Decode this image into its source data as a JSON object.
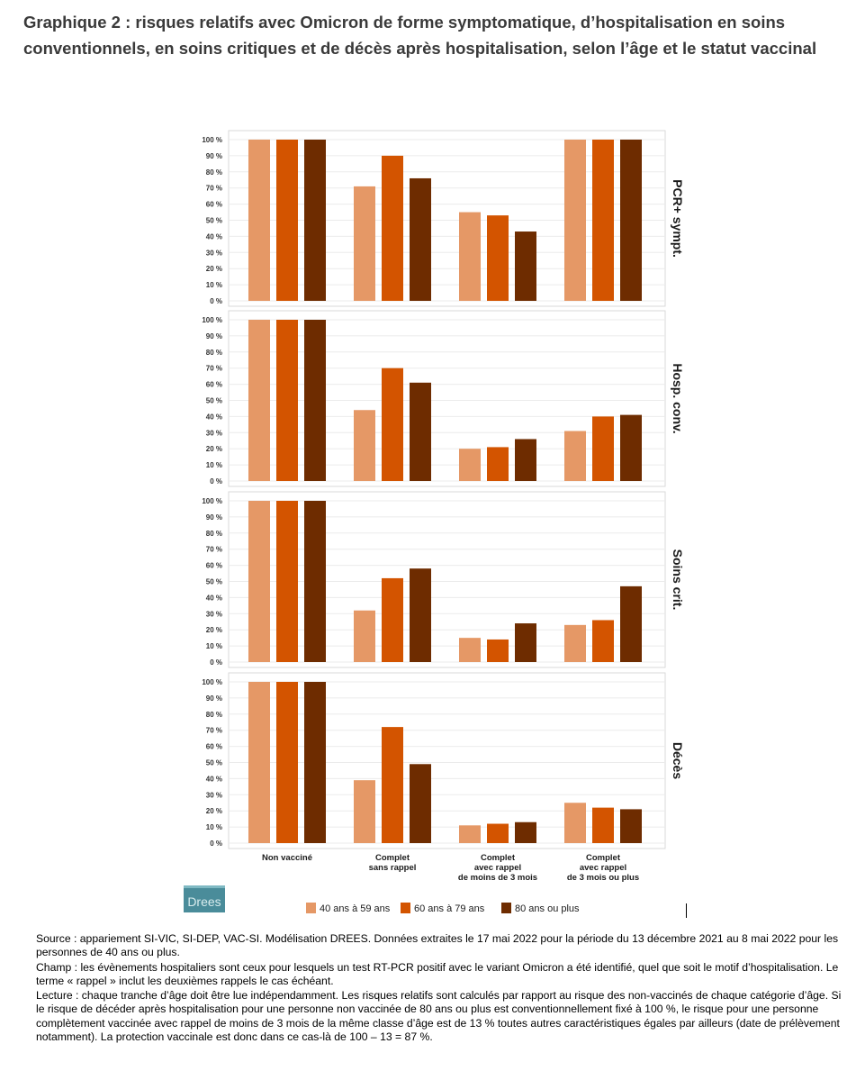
{
  "title": "Graphique 2 : risques relatifs avec Omicron de forme symptomatique, d’hospitalisation en soins conventionnels, en soins critiques et de décès après hospitalisation, selon l’âge et le statut vaccinal",
  "logo_text": "Drees",
  "notes": {
    "source": "Source : appariement SI-VIC, SI-DEP, VAC-SI. Modélisation DREES. Données extraites le 17 mai 2022 pour la période du 13 décembre 2021 au 8 mai 2022 pour les personnes de 40 ans ou plus.",
    "champ": "Champ : les évènements hospitaliers sont ceux pour lesquels un test RT-PCR positif avec le variant Omicron a été identifié, quel que soit le motif d’hospitalisation. Le terme « rappel » inclut les deuxièmes rappels le cas échéant.",
    "lecture": "Lecture : chaque tranche d’âge doit être lue indépendamment. Les risques relatifs sont calculés par rapport au risque des non-vaccinés de chaque catégorie d’âge. Si le risque de décéder après hospitalisation pour une personne non vaccinée de 80 ans ou plus est conventionnellement fixé à 100 %, le risque pour une personne complètement vaccinée avec rappel de moins de 3 mois de la même classe d’âge est de 13 % toutes autres caractéristiques égales par ailleurs (date de prélèvement notamment). La protection vaccinale est donc dans ce cas-là de 100 – 13 = 87 %."
  },
  "chart_data": {
    "type": "bar",
    "ylim": [
      0,
      100
    ],
    "y_ticks": [
      "0 %",
      "10 %",
      "20 %",
      "30 %",
      "40 %",
      "50 %",
      "60 %",
      "70 %",
      "80 %",
      "90 %",
      "100 %"
    ],
    "categories": [
      [
        "Non vacciné"
      ],
      [
        "Complet",
        "sans rappel"
      ],
      [
        "Complet",
        "avec rappel",
        "de moins de 3 mois"
      ],
      [
        "Complet",
        "avec rappel",
        "de 3 mois ou plus"
      ]
    ],
    "legend": [
      {
        "name": "40 ans à 59 ans",
        "color": "#e59866"
      },
      {
        "name": "60 ans à 79 ans",
        "color": "#d35400"
      },
      {
        "name": "80 ans ou plus",
        "color": "#6e2c00"
      }
    ],
    "legend_position": "bottom",
    "panels": [
      {
        "label": "PCR+ sympt.",
        "series": [
          [
            100,
            71,
            55,
            100
          ],
          [
            100,
            90,
            53,
            100
          ],
          [
            100,
            76,
            43,
            100
          ]
        ]
      },
      {
        "label": "Hosp. conv.",
        "series": [
          [
            100,
            44,
            20,
            31
          ],
          [
            100,
            70,
            21,
            40
          ],
          [
            100,
            61,
            26,
            41
          ]
        ]
      },
      {
        "label": "Soins crit.",
        "series": [
          [
            100,
            32,
            15,
            23
          ],
          [
            100,
            52,
            14,
            26
          ],
          [
            100,
            58,
            24,
            47
          ]
        ]
      },
      {
        "label": "Décès",
        "series": [
          [
            100,
            39,
            11,
            25
          ],
          [
            100,
            72,
            12,
            22
          ],
          [
            100,
            49,
            13,
            21
          ]
        ]
      }
    ]
  }
}
